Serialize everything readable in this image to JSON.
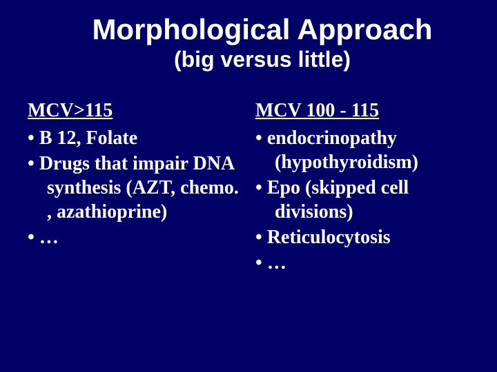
{
  "background_color": "#000066",
  "text_color": "#ffffff",
  "title": "Morphological Approach",
  "subtitle": "(big versus little)",
  "title_font": {
    "family": "Arial",
    "weight": "bold",
    "size_pt": 42
  },
  "subtitle_font": {
    "family": "Arial",
    "weight": "bold",
    "size_pt": 32
  },
  "body_font": {
    "family": "Times New Roman",
    "weight": "bold",
    "size_pt": 28
  },
  "columns": [
    {
      "heading": "MCV>115",
      "items": [
        "B 12, Folate",
        "Drugs that impair DNA synthesis (AZT, chemo. , azathioprine)",
        "…"
      ]
    },
    {
      "heading": "MCV 100 - 115",
      "items": [
        "endocrinopathy (hypothyroidism)",
        "Epo (skipped cell divisions)",
        "Reticulocytosis",
        "…"
      ]
    }
  ]
}
